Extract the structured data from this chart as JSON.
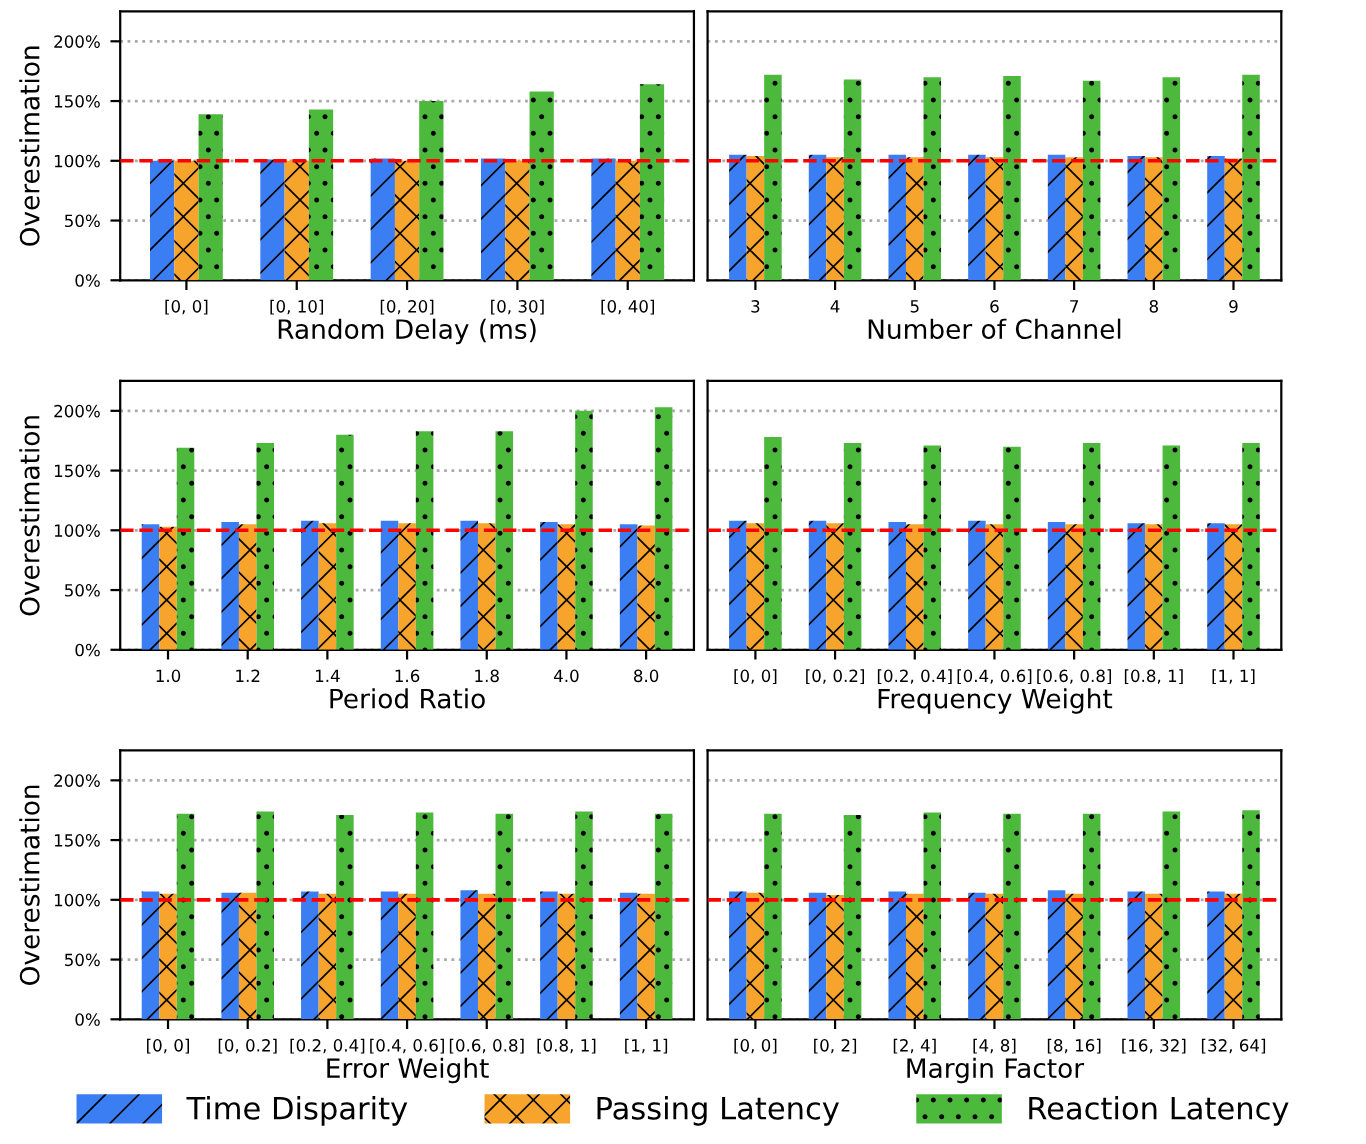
{
  "chart_data": [
    {
      "type": "bar",
      "xlabel": "Random Delay (ms)",
      "ylabel": "Overestimation",
      "categories": [
        "[0, 0]",
        "[0, 10]",
        "[0, 20]",
        "[0, 30]",
        "[0, 40]"
      ],
      "series": [
        {
          "name": "Time Disparity",
          "color": "#3b7df2",
          "values": [
            100,
            101,
            102,
            102,
            102
          ]
        },
        {
          "name": "Passing Latency",
          "color": "#f7a42c",
          "values": [
            100,
            100,
            100,
            100,
            100
          ]
        },
        {
          "name": "Reaction Latency",
          "color": "#4cb83c",
          "values": [
            139,
            143,
            150,
            158,
            164
          ]
        }
      ],
      "ylim": [
        0,
        225
      ],
      "yticks": [
        {
          "value": 0,
          "label": "0%"
        },
        {
          "value": 50,
          "label": "50%"
        },
        {
          "value": 100,
          "label": "100%"
        },
        {
          "value": 150,
          "label": "150%"
        },
        {
          "value": 200,
          "label": "200%"
        }
      ],
      "grid": "y",
      "legend": "bottom",
      "ref_lines": [
        {
          "axis": "y",
          "value": 100,
          "color": "#ff0000",
          "line_style": "dashed"
        }
      ]
    },
    {
      "type": "bar",
      "xlabel": "Number of Channel",
      "categories": [
        "3",
        "4",
        "5",
        "6",
        "7",
        "8",
        "9"
      ],
      "series": [
        {
          "color": "#3b7df2",
          "values": [
            105,
            105,
            105,
            105,
            105,
            104,
            104
          ]
        },
        {
          "color": "#f7a42c",
          "values": [
            104,
            103,
            103,
            103,
            103,
            103,
            102
          ]
        },
        {
          "color": "#4cb83c",
          "values": [
            172,
            168,
            170,
            171,
            167,
            170,
            172
          ]
        }
      ],
      "ylim": [
        0,
        225
      ],
      "yticks": [
        {
          "value": 0,
          "label": null
        },
        {
          "value": 50,
          "label": null
        },
        {
          "value": 100,
          "label": null
        },
        {
          "value": 150,
          "label": null
        },
        {
          "value": 200,
          "label": null
        }
      ],
      "tick_labels": "x",
      "grid": "y",
      "ref_lines": [
        {
          "axis": "y",
          "value": 100,
          "color": "#ff0000",
          "line_style": "dashed"
        }
      ]
    },
    {
      "type": "bar",
      "xlabel": "Period Ratio",
      "ylabel": "Overestimation",
      "categories": [
        "1.0",
        "1.2",
        "1.4",
        "1.6",
        "1.8",
        "4.0",
        "8.0"
      ],
      "series": [
        {
          "color": "#3b7df2",
          "values": [
            105,
            107,
            108,
            108,
            108,
            107,
            105
          ]
        },
        {
          "color": "#f7a42c",
          "values": [
            103,
            105,
            106,
            106,
            106,
            105,
            104
          ]
        },
        {
          "color": "#4cb83c",
          "values": [
            169,
            173,
            180,
            183,
            183,
            200,
            203
          ]
        }
      ],
      "ylim": [
        0,
        225
      ],
      "yticks": [
        {
          "value": 0,
          "label": "0%"
        },
        {
          "value": 50,
          "label": "50%"
        },
        {
          "value": 100,
          "label": "100%"
        },
        {
          "value": 150,
          "label": "150%"
        },
        {
          "value": 200,
          "label": "200%"
        }
      ],
      "grid": "y",
      "ref_lines": [
        {
          "axis": "y",
          "value": 100,
          "color": "#ff0000",
          "line_style": "dashed"
        }
      ]
    },
    {
      "type": "bar",
      "xlabel": "Frequency Weight",
      "categories": [
        "[0, 0]",
        "[0, 0.2]",
        "[0.2, 0.4]",
        "[0.4, 0.6]",
        "[0.6, 0.8]",
        "[0.8, 1]",
        "[1, 1]"
      ],
      "series": [
        {
          "color": "#3b7df2",
          "values": [
            108,
            108,
            107,
            108,
            107,
            106,
            106
          ]
        },
        {
          "color": "#f7a42c",
          "values": [
            106,
            106,
            105,
            105,
            105,
            105,
            105
          ]
        },
        {
          "color": "#4cb83c",
          "values": [
            178,
            173,
            171,
            170,
            173,
            171,
            173
          ]
        }
      ],
      "ylim": [
        0,
        225
      ],
      "yticks": [
        {
          "value": 0,
          "label": null
        },
        {
          "value": 50,
          "label": null
        },
        {
          "value": 100,
          "label": null
        },
        {
          "value": 150,
          "label": null
        },
        {
          "value": 200,
          "label": null
        }
      ],
      "tick_labels": "x",
      "grid": "y",
      "ref_lines": [
        {
          "axis": "y",
          "value": 100,
          "color": "#ff0000",
          "line_style": "dashed"
        }
      ]
    },
    {
      "type": "bar",
      "xlabel": "Error Weight",
      "ylabel": "Overestimation",
      "categories": [
        "[0, 0]",
        "[0, 0.2]",
        "[0.2, 0.4]",
        "[0.4, 0.6]",
        "[0.6, 0.8]",
        "[0.8, 1]",
        "[1, 1]"
      ],
      "series": [
        {
          "color": "#3b7df2",
          "values": [
            107,
            106,
            107,
            107,
            108,
            107,
            106
          ]
        },
        {
          "color": "#f7a42c",
          "values": [
            105,
            106,
            105,
            105,
            105,
            105,
            105
          ]
        },
        {
          "color": "#4cb83c",
          "values": [
            172,
            174,
            171,
            173,
            172,
            174,
            172
          ]
        }
      ],
      "ylim": [
        0,
        225
      ],
      "yticks": [
        {
          "value": 0,
          "label": "0%"
        },
        {
          "value": 50,
          "label": "50%"
        },
        {
          "value": 100,
          "label": "100%"
        },
        {
          "value": 150,
          "label": "150%"
        },
        {
          "value": 200,
          "label": "200%"
        }
      ],
      "grid": "y",
      "ref_lines": [
        {
          "axis": "y",
          "value": 100,
          "color": "#ff0000",
          "line_style": "dashed"
        }
      ]
    },
    {
      "type": "bar",
      "xlabel": "Margin Factor",
      "categories": [
        "[0, 0]",
        "[0, 2]",
        "[2, 4]",
        "[4, 8]",
        "[8, 16]",
        "[16, 32]",
        "[32, 64]"
      ],
      "series": [
        {
          "color": "#3b7df2",
          "values": [
            107,
            106,
            107,
            106,
            108,
            107,
            107
          ]
        },
        {
          "color": "#f7a42c",
          "values": [
            106,
            104,
            105,
            105,
            105,
            105,
            105
          ]
        },
        {
          "color": "#4cb83c",
          "values": [
            172,
            171,
            173,
            172,
            172,
            174,
            175
          ]
        }
      ],
      "ylim": [
        0,
        225
      ],
      "yticks": [
        {
          "value": 0,
          "label": null
        },
        {
          "value": 50,
          "label": null
        },
        {
          "value": 100,
          "label": null
        },
        {
          "value": 150,
          "label": null
        },
        {
          "value": 200,
          "label": null
        }
      ],
      "tick_labels": "x",
      "grid": "y",
      "ref_lines": [
        {
          "axis": "y",
          "value": 100,
          "color": "#ff0000",
          "line_style": "dashed"
        }
      ]
    }
  ]
}
